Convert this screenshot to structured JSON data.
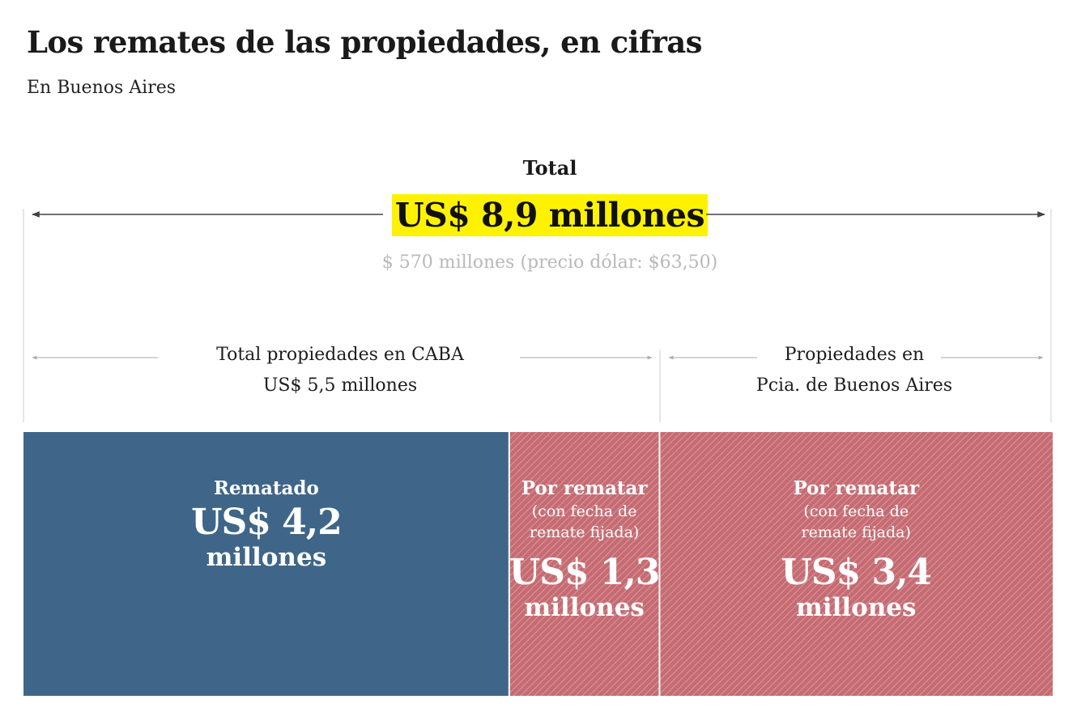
{
  "title": "Los remates de las propiedades, en cifras",
  "subtitle": "En Buenos Aires",
  "total": {
    "label": "Total",
    "value": "US$ 8,9 millones",
    "pesos": "$ 570 millones (precio dólar: $63,50)"
  },
  "groups": {
    "caba": {
      "line1": "Total propiedades en CABA",
      "line2": "US$ 5,5 millones"
    },
    "pba": {
      "line1": "Propiedades en",
      "line2": "Pcia. de Buenos Aires"
    }
  },
  "segments": [
    {
      "title": "Rematado",
      "note1": "",
      "note2": "",
      "amount": "US$ 4,2",
      "unit": "millones"
    },
    {
      "title": "Por rematar",
      "note1": "(con fecha de",
      "note2": "remate fijada)",
      "amount": "US$ 1,3",
      "unit": "millones"
    },
    {
      "title": "Por rematar",
      "note1": "(con fecha de",
      "note2": "remate fijada)",
      "amount": "US$ 3,4",
      "unit": "millones"
    }
  ],
  "colors": {
    "rematado": "#3f6688",
    "por_rematar": "#c66b72",
    "highlight": "#fff200"
  },
  "chart_data": {
    "type": "bar",
    "orientation": "horizontal-stacked",
    "title": "Los remates de las propiedades, en cifras",
    "subtitle": "En Buenos Aires",
    "unit": "US$ millones",
    "total": 8.9,
    "categories": [
      "CABA",
      "CABA",
      "Pcia. de Buenos Aires"
    ],
    "series": [
      {
        "name": "Rematado",
        "values": [
          4.2,
          0,
          0
        ]
      },
      {
        "name": "Por rematar",
        "values": [
          0,
          1.3,
          3.4
        ]
      }
    ],
    "group_totals": {
      "CABA": 5.5
    },
    "legend": "none"
  }
}
